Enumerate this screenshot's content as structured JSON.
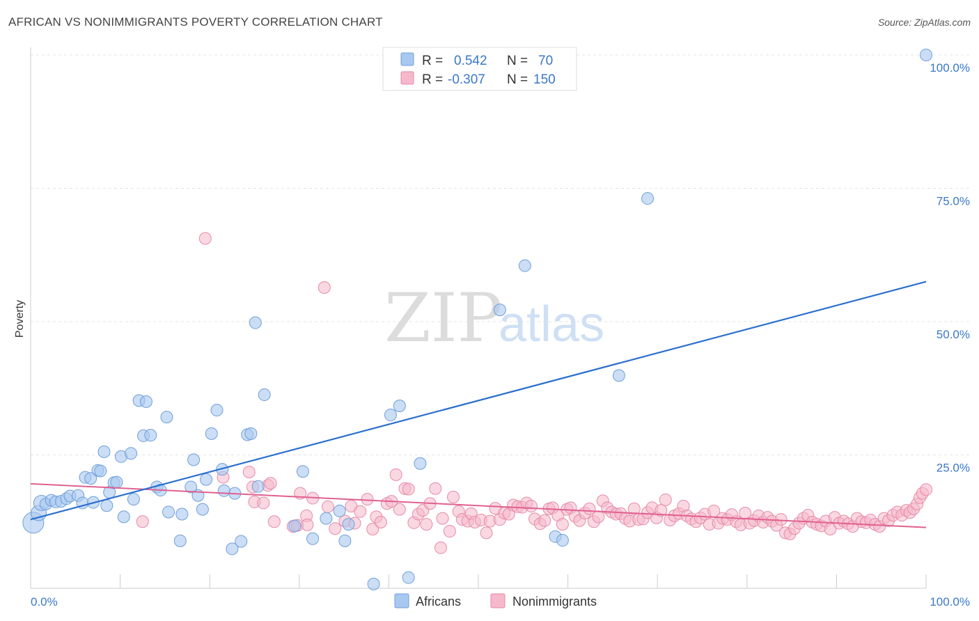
{
  "title": "AFRICAN VS NONIMMIGRANTS POVERTY CORRELATION CHART",
  "source": "Source: ZipAtlas.com",
  "watermark": {
    "zip": "ZIP",
    "atlas": "atlas"
  },
  "legend_box": {
    "rows": [
      {
        "r_label": "R = ",
        "r_value": "0.542",
        "n_label": "N = ",
        "n_value": "70",
        "color": "#a9c8f0",
        "stroke": "#6f9fd8"
      },
      {
        "r_label": "R = ",
        "r_value": "-0.307",
        "n_label": "N = ",
        "n_value": "150",
        "color": "#f6b8cb",
        "stroke": "#e58aa9"
      }
    ]
  },
  "colors": {
    "blue_fill": "#a9c8f0",
    "blue_stroke": "#6f9fd8",
    "blue_line": "#2a6fce",
    "pink_fill": "#f6b8cb",
    "pink_stroke": "#e58aa9",
    "pink_line": "#e0608f",
    "tick_text": "#3a78c9"
  },
  "chart_data": {
    "type": "scatter",
    "title": "AFRICAN VS NONIMMIGRANTS POVERTY CORRELATION CHART",
    "xlabel": "",
    "ylabel": "Poverty",
    "xlim": [
      0,
      100
    ],
    "ylim": [
      0,
      100
    ],
    "x_tick_labels": [
      "0.0%",
      "100.0%"
    ],
    "y_tick_labels": [
      "100.0%",
      "75.0%",
      "50.0%",
      "25.0%"
    ],
    "y_ticks": [
      100,
      75,
      50,
      25
    ],
    "grid": true,
    "legend": "bottom-center",
    "series": [
      {
        "name": "Africans",
        "color": "#a9c8f0",
        "trend": {
          "x": [
            0,
            100
          ],
          "y": [
            12.9,
            57.5
          ]
        },
        "points": [
          [
            0.3,
            12.3,
            3
          ],
          [
            0.9,
            14.1,
            2
          ],
          [
            1.2,
            16.0,
            2
          ],
          [
            1.7,
            15.8,
            1
          ],
          [
            2.3,
            16.5,
            1
          ],
          [
            2.8,
            16.2,
            1
          ],
          [
            3.4,
            16.3,
            1
          ],
          [
            4.0,
            16.8,
            1
          ],
          [
            4.4,
            17.3,
            1
          ],
          [
            5.3,
            17.4,
            1
          ],
          [
            5.8,
            16.0,
            1
          ],
          [
            6.1,
            20.8,
            1
          ],
          [
            6.7,
            20.6,
            1
          ],
          [
            7.0,
            16.1,
            1
          ],
          [
            7.5,
            22.1,
            1
          ],
          [
            7.8,
            22.0,
            1
          ],
          [
            8.2,
            25.6,
            1
          ],
          [
            8.5,
            15.5,
            1
          ],
          [
            8.8,
            18.0,
            1
          ],
          [
            9.3,
            19.8,
            1
          ],
          [
            9.6,
            19.9,
            1
          ],
          [
            10.1,
            24.7,
            1
          ],
          [
            10.4,
            13.4,
            1
          ],
          [
            11.2,
            25.3,
            1
          ],
          [
            11.5,
            16.7,
            1
          ],
          [
            12.1,
            35.2,
            1
          ],
          [
            12.9,
            35.0,
            1
          ],
          [
            12.6,
            28.6,
            1
          ],
          [
            13.4,
            28.7,
            1
          ],
          [
            14.1,
            19.0,
            1
          ],
          [
            14.5,
            18.4,
            1
          ],
          [
            15.4,
            14.3,
            1
          ],
          [
            15.2,
            32.1,
            1
          ],
          [
            16.9,
            13.9,
            1
          ],
          [
            16.7,
            8.9,
            1
          ],
          [
            17.9,
            19.0,
            1
          ],
          [
            18.2,
            24.1,
            1
          ],
          [
            18.7,
            17.4,
            1
          ],
          [
            19.2,
            14.8,
            1
          ],
          [
            19.6,
            20.4,
            1
          ],
          [
            20.2,
            29.0,
            1
          ],
          [
            20.8,
            33.4,
            1
          ],
          [
            21.4,
            22.3,
            1
          ],
          [
            21.6,
            18.3,
            1
          ],
          [
            22.5,
            7.4,
            1
          ],
          [
            22.8,
            17.8,
            1
          ],
          [
            23.5,
            8.8,
            1
          ],
          [
            24.2,
            28.8,
            1
          ],
          [
            24.6,
            29.0,
            1
          ],
          [
            25.1,
            49.8,
            1
          ],
          [
            25.4,
            19.1,
            1
          ],
          [
            26.1,
            36.3,
            1
          ],
          [
            29.5,
            11.7,
            1
          ],
          [
            30.4,
            21.9,
            1
          ],
          [
            31.5,
            9.3,
            1
          ],
          [
            33.0,
            13.1,
            1
          ],
          [
            34.5,
            14.5,
            1
          ],
          [
            35.1,
            8.9,
            1
          ],
          [
            35.5,
            12.0,
            1
          ],
          [
            38.3,
            0.8,
            1
          ],
          [
            40.2,
            32.5,
            1
          ],
          [
            41.2,
            34.2,
            1
          ],
          [
            42.2,
            2.0,
            1
          ],
          [
            43.5,
            23.4,
            1
          ],
          [
            52.4,
            52.2,
            1
          ],
          [
            55.2,
            60.5,
            1
          ],
          [
            58.6,
            9.7,
            1
          ],
          [
            59.4,
            9.0,
            1
          ],
          [
            65.7,
            39.9,
            1
          ],
          [
            68.9,
            73.1,
            1
          ],
          [
            100,
            100,
            1
          ]
        ]
      },
      {
        "name": "Nonimmigrants",
        "color": "#f6b8cb",
        "trend": {
          "x": [
            0,
            100
          ],
          "y": [
            19.6,
            11.4
          ]
        },
        "points": [
          [
            12.5,
            12.5
          ],
          [
            19.5,
            65.6
          ],
          [
            21.5,
            20.8
          ],
          [
            24.4,
            21.8
          ],
          [
            24.8,
            19.0
          ],
          [
            25.0,
            16.2
          ],
          [
            26.0,
            16.0
          ],
          [
            26.5,
            19.3
          ],
          [
            26.8,
            19.7
          ],
          [
            27.2,
            12.5
          ],
          [
            29.3,
            11.6
          ],
          [
            29.8,
            11.8
          ],
          [
            30.1,
            17.8
          ],
          [
            30.8,
            13.6
          ],
          [
            30.9,
            11.9
          ],
          [
            31.5,
            16.9
          ],
          [
            32.8,
            56.4
          ],
          [
            33.2,
            15.3
          ],
          [
            34.0,
            11.2
          ],
          [
            35.1,
            12.6
          ],
          [
            35.8,
            15.4
          ],
          [
            36.2,
            12.2
          ],
          [
            36.8,
            14.4
          ],
          [
            37.6,
            16.7
          ],
          [
            38.2,
            11.1
          ],
          [
            38.6,
            13.4
          ],
          [
            39.1,
            12.4
          ],
          [
            39.8,
            15.9
          ],
          [
            40.3,
            16.3
          ],
          [
            40.8,
            21.3
          ],
          [
            41.2,
            14.8
          ],
          [
            41.8,
            18.7
          ],
          [
            42.2,
            18.6
          ],
          [
            42.8,
            12.3
          ],
          [
            43.3,
            13.9
          ],
          [
            43.8,
            14.6
          ],
          [
            44.2,
            12.0
          ],
          [
            44.6,
            15.9
          ],
          [
            45.2,
            18.7
          ],
          [
            45.8,
            7.6
          ],
          [
            46.0,
            13.1
          ],
          [
            46.8,
            10.7
          ],
          [
            47.2,
            17.1
          ],
          [
            47.8,
            14.4
          ],
          [
            48.2,
            12.9
          ],
          [
            48.8,
            12.6
          ],
          [
            49.2,
            14.0
          ],
          [
            49.6,
            12.4
          ],
          [
            50.3,
            12.8
          ],
          [
            50.9,
            10.4
          ],
          [
            51.3,
            12.6
          ],
          [
            51.9,
            15.0
          ],
          [
            52.4,
            12.9
          ],
          [
            52.9,
            14.1
          ],
          [
            53.4,
            13.9
          ],
          [
            53.9,
            15.6
          ],
          [
            54.4,
            15.3
          ],
          [
            54.9,
            15.2
          ],
          [
            55.4,
            16.0
          ],
          [
            55.9,
            15.4
          ],
          [
            56.3,
            13.0
          ],
          [
            56.9,
            12.1
          ],
          [
            57.4,
            12.7
          ],
          [
            57.9,
            14.9
          ],
          [
            58.3,
            15.1
          ],
          [
            58.9,
            13.7
          ],
          [
            59.4,
            12.0
          ],
          [
            59.9,
            14.8
          ],
          [
            60.3,
            15.1
          ],
          [
            60.8,
            13.5
          ],
          [
            61.3,
            12.7
          ],
          [
            61.9,
            14.1
          ],
          [
            62.4,
            14.9
          ],
          [
            62.9,
            12.5
          ],
          [
            63.4,
            13.4
          ],
          [
            63.9,
            16.4
          ],
          [
            64.4,
            15.1
          ],
          [
            64.9,
            14.3
          ],
          [
            65.4,
            13.9
          ],
          [
            65.9,
            14.0
          ],
          [
            66.4,
            13.1
          ],
          [
            66.9,
            12.6
          ],
          [
            67.4,
            14.9
          ],
          [
            67.9,
            12.9
          ],
          [
            68.4,
            13.0
          ],
          [
            68.9,
            14.2
          ],
          [
            69.4,
            15.1
          ],
          [
            69.9,
            13.2
          ],
          [
            70.4,
            14.6
          ],
          [
            70.9,
            16.6
          ],
          [
            71.4,
            12.8
          ],
          [
            71.9,
            13.6
          ],
          [
            72.4,
            14.0
          ],
          [
            72.9,
            15.4
          ],
          [
            73.3,
            13.6
          ],
          [
            73.8,
            13.0
          ],
          [
            74.3,
            12.5
          ],
          [
            74.8,
            13.2
          ],
          [
            75.3,
            13.9
          ],
          [
            75.8,
            12.0
          ],
          [
            76.3,
            14.5
          ],
          [
            76.8,
            12.2
          ],
          [
            77.3,
            13.1
          ],
          [
            77.8,
            12.9
          ],
          [
            78.3,
            13.8
          ],
          [
            78.8,
            12.5
          ],
          [
            79.3,
            11.9
          ],
          [
            79.8,
            14.1
          ],
          [
            80.3,
            12.2
          ],
          [
            80.8,
            12.7
          ],
          [
            81.3,
            13.6
          ],
          [
            81.8,
            12.4
          ],
          [
            82.3,
            13.3
          ],
          [
            82.8,
            12.6
          ],
          [
            83.3,
            11.8
          ],
          [
            83.8,
            12.9
          ],
          [
            84.3,
            10.4
          ],
          [
            84.8,
            10.2
          ],
          [
            85.3,
            11.2
          ],
          [
            85.8,
            12.2
          ],
          [
            86.3,
            13.1
          ],
          [
            86.8,
            13.7
          ],
          [
            87.3,
            12.4
          ],
          [
            87.8,
            12.0
          ],
          [
            88.3,
            11.7
          ],
          [
            88.8,
            12.6
          ],
          [
            89.3,
            11.1
          ],
          [
            89.8,
            13.3
          ],
          [
            90.3,
            12.2
          ],
          [
            90.8,
            12.6
          ],
          [
            91.3,
            12.1
          ],
          [
            91.8,
            11.6
          ],
          [
            92.3,
            13.1
          ],
          [
            92.8,
            12.5
          ],
          [
            93.3,
            12.3
          ],
          [
            93.8,
            12.8
          ],
          [
            94.3,
            12.0
          ],
          [
            94.8,
            11.6
          ],
          [
            95.3,
            13.1
          ],
          [
            95.8,
            12.7
          ],
          [
            96.3,
            13.7
          ],
          [
            96.8,
            14.3
          ],
          [
            97.3,
            13.7
          ],
          [
            97.8,
            14.6
          ],
          [
            98.2,
            14.2
          ],
          [
            98.6,
            14.9
          ],
          [
            99.0,
            15.8
          ],
          [
            99.3,
            17.0
          ],
          [
            99.6,
            17.8
          ],
          [
            100,
            18.5
          ]
        ]
      }
    ]
  },
  "bottom_legend": [
    {
      "label": "Africans",
      "color": "#a9c8f0",
      "stroke": "#6f9fd8"
    },
    {
      "label": "Nonimmigrants",
      "color": "#f6b8cb",
      "stroke": "#e58aa9"
    }
  ]
}
